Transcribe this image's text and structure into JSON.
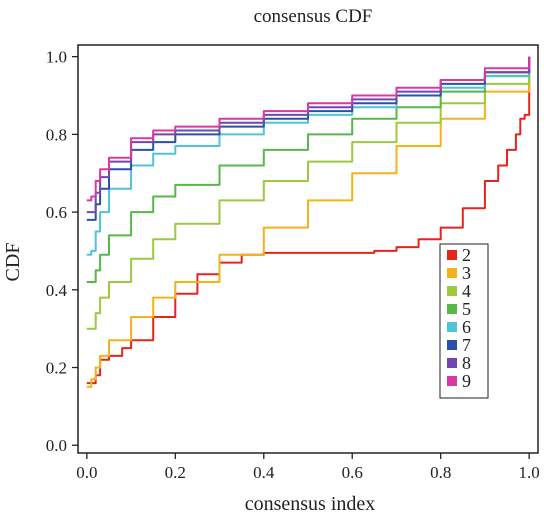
{
  "chart_data": {
    "type": "line",
    "title": "consensus CDF",
    "xlabel": "consensus index",
    "ylabel": "CDF",
    "xlim": [
      -0.02,
      1.02
    ],
    "ylim": [
      -0.02,
      1.03
    ],
    "xticks": [
      "0.0",
      "0.2",
      "0.4",
      "0.6",
      "0.8",
      "1.0"
    ],
    "yticks": [
      "0.0",
      "0.2",
      "0.4",
      "0.6",
      "0.8",
      "1.0"
    ],
    "grid": false,
    "legend_position": "right",
    "series": [
      {
        "name": "2",
        "color": "#e8231e",
        "x": [
          0.0,
          0.01,
          0.02,
          0.03,
          0.05,
          0.08,
          0.1,
          0.15,
          0.2,
          0.25,
          0.3,
          0.35,
          0.4,
          0.45,
          0.5,
          0.55,
          0.6,
          0.65,
          0.7,
          0.75,
          0.8,
          0.85,
          0.9,
          0.93,
          0.95,
          0.97,
          0.98,
          0.99,
          1.0
        ],
        "y": [
          0.16,
          0.16,
          0.18,
          0.22,
          0.23,
          0.25,
          0.27,
          0.33,
          0.39,
          0.44,
          0.47,
          0.49,
          0.495,
          0.495,
          0.495,
          0.495,
          0.495,
          0.5,
          0.51,
          0.53,
          0.56,
          0.61,
          0.68,
          0.72,
          0.76,
          0.8,
          0.84,
          0.85,
          1.0
        ]
      },
      {
        "name": "3",
        "color": "#f2b31a",
        "x": [
          0.0,
          0.01,
          0.02,
          0.03,
          0.05,
          0.1,
          0.15,
          0.2,
          0.3,
          0.4,
          0.5,
          0.6,
          0.7,
          0.8,
          0.9,
          1.0
        ],
        "y": [
          0.15,
          0.17,
          0.2,
          0.23,
          0.27,
          0.33,
          0.38,
          0.42,
          0.49,
          0.56,
          0.63,
          0.7,
          0.77,
          0.84,
          0.91,
          1.0
        ]
      },
      {
        "name": "4",
        "color": "#9cc93e",
        "x": [
          0.0,
          0.01,
          0.02,
          0.03,
          0.05,
          0.1,
          0.15,
          0.2,
          0.3,
          0.4,
          0.5,
          0.6,
          0.7,
          0.8,
          0.9,
          1.0
        ],
        "y": [
          0.3,
          0.3,
          0.34,
          0.38,
          0.42,
          0.48,
          0.53,
          0.57,
          0.63,
          0.68,
          0.73,
          0.78,
          0.83,
          0.88,
          0.93,
          1.0
        ]
      },
      {
        "name": "5",
        "color": "#55b848",
        "x": [
          0.0,
          0.01,
          0.02,
          0.03,
          0.05,
          0.1,
          0.15,
          0.2,
          0.3,
          0.4,
          0.5,
          0.6,
          0.7,
          0.8,
          0.9,
          1.0
        ],
        "y": [
          0.42,
          0.42,
          0.45,
          0.49,
          0.54,
          0.6,
          0.64,
          0.67,
          0.72,
          0.76,
          0.8,
          0.84,
          0.87,
          0.91,
          0.95,
          1.0
        ]
      },
      {
        "name": "6",
        "color": "#4fc3d9",
        "x": [
          0.0,
          0.01,
          0.02,
          0.03,
          0.05,
          0.1,
          0.15,
          0.2,
          0.3,
          0.4,
          0.5,
          0.6,
          0.7,
          0.8,
          0.9,
          1.0
        ],
        "y": [
          0.49,
          0.5,
          0.55,
          0.6,
          0.66,
          0.72,
          0.75,
          0.77,
          0.8,
          0.83,
          0.85,
          0.87,
          0.9,
          0.92,
          0.95,
          1.0
        ]
      },
      {
        "name": "7",
        "color": "#2c50a8",
        "x": [
          0.0,
          0.01,
          0.02,
          0.03,
          0.05,
          0.1,
          0.15,
          0.2,
          0.3,
          0.4,
          0.5,
          0.6,
          0.7,
          0.8,
          0.9,
          1.0
        ],
        "y": [
          0.58,
          0.58,
          0.62,
          0.66,
          0.71,
          0.76,
          0.78,
          0.8,
          0.82,
          0.84,
          0.86,
          0.88,
          0.9,
          0.93,
          0.96,
          1.0
        ]
      },
      {
        "name": "8",
        "color": "#7345b0",
        "x": [
          0.0,
          0.01,
          0.02,
          0.03,
          0.05,
          0.1,
          0.15,
          0.2,
          0.3,
          0.4,
          0.5,
          0.6,
          0.7,
          0.8,
          0.9,
          1.0
        ],
        "y": [
          0.6,
          0.6,
          0.65,
          0.69,
          0.73,
          0.78,
          0.8,
          0.81,
          0.83,
          0.85,
          0.87,
          0.89,
          0.91,
          0.94,
          0.96,
          1.0
        ]
      },
      {
        "name": "9",
        "color": "#d8389f",
        "x": [
          0.0,
          0.01,
          0.02,
          0.03,
          0.05,
          0.1,
          0.15,
          0.2,
          0.3,
          0.4,
          0.5,
          0.6,
          0.7,
          0.8,
          0.9,
          1.0
        ],
        "y": [
          0.63,
          0.64,
          0.68,
          0.71,
          0.74,
          0.79,
          0.81,
          0.82,
          0.84,
          0.86,
          0.88,
          0.9,
          0.92,
          0.94,
          0.97,
          1.0
        ]
      }
    ]
  }
}
